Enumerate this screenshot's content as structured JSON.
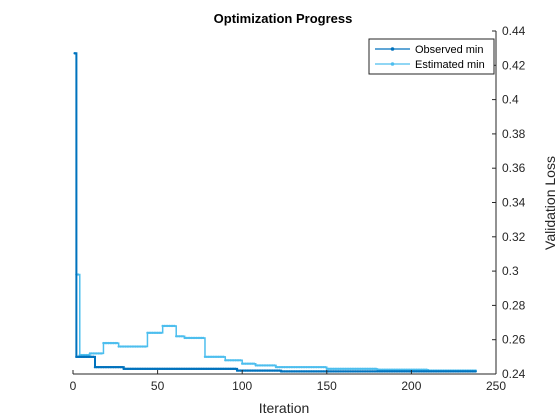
{
  "chart_data": {
    "type": "line",
    "title": "Optimization Progress",
    "xlabel": "Iteration",
    "ylabel": "Validation Loss",
    "xlim": [
      0,
      250
    ],
    "ylim": [
      0.24,
      0.44
    ],
    "y_axis_side": "right",
    "grid": false,
    "legend_position": "top-right",
    "x_ticks": [
      0,
      50,
      100,
      150,
      200,
      250
    ],
    "y_ticks": [
      0.24,
      0.26,
      0.28,
      0.3,
      0.32,
      0.34,
      0.36,
      0.38,
      0.4,
      0.42,
      0.44
    ],
    "x_tick_labels": [
      "0",
      "50",
      "100",
      "150",
      "200",
      "250"
    ],
    "y_tick_labels": [
      "0.24",
      "0.26",
      "0.28",
      "0.3",
      "0.32",
      "0.34",
      "0.36",
      "0.38",
      "0.4",
      "0.42",
      "0.44"
    ],
    "series": [
      {
        "name": "Observed min",
        "color": "#0072BD",
        "style": "stairs",
        "points": [
          [
            1,
            0.427
          ],
          [
            2,
            0.25
          ],
          [
            13,
            0.244
          ],
          [
            30,
            0.243
          ],
          [
            97,
            0.242
          ],
          [
            123,
            0.2415
          ],
          [
            238,
            0.2415
          ]
        ]
      },
      {
        "name": "Estimated min",
        "color": "#4DBEEE",
        "style": "stairs",
        "points": [
          [
            1,
            0.427
          ],
          [
            2,
            0.298
          ],
          [
            4,
            0.251
          ],
          [
            10,
            0.252
          ],
          [
            18,
            0.258
          ],
          [
            27,
            0.256
          ],
          [
            44,
            0.264
          ],
          [
            53,
            0.268
          ],
          [
            61,
            0.262
          ],
          [
            66,
            0.261
          ],
          [
            78,
            0.25
          ],
          [
            90,
            0.248
          ],
          [
            100,
            0.246
          ],
          [
            108,
            0.245
          ],
          [
            120,
            0.244
          ],
          [
            150,
            0.243
          ],
          [
            180,
            0.2425
          ],
          [
            210,
            0.242
          ],
          [
            238,
            0.242
          ]
        ]
      }
    ]
  }
}
